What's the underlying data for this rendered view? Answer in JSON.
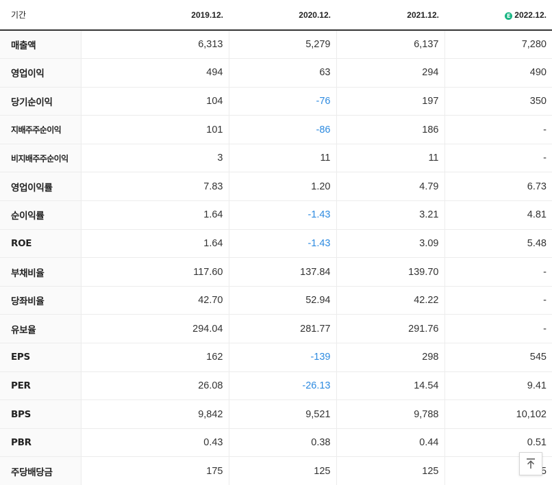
{
  "header": {
    "period_label": "기간",
    "columns": [
      "2019.12.",
      "2020.12.",
      "2021.12.",
      "2022.12."
    ],
    "estimate_badge": "E"
  },
  "rows": [
    {
      "label": "매출액",
      "values": [
        "6,313",
        "5,279",
        "6,137",
        "7,280"
      ]
    },
    {
      "label": "영업이익",
      "values": [
        "494",
        "63",
        "294",
        "490"
      ]
    },
    {
      "label": "당기순이익",
      "values": [
        "104",
        "-76",
        "197",
        "350"
      ]
    },
    {
      "label": "지배주주순이익",
      "values": [
        "101",
        "-86",
        "186",
        "-"
      ]
    },
    {
      "label": "비지배주주순이익",
      "values": [
        "3",
        "11",
        "11",
        "-"
      ]
    },
    {
      "label": "영업이익률",
      "values": [
        "7.83",
        "1.20",
        "4.79",
        "6.73"
      ]
    },
    {
      "label": "순이익률",
      "values": [
        "1.64",
        "-1.43",
        "3.21",
        "4.81"
      ]
    },
    {
      "label": "ROE",
      "values": [
        "1.64",
        "-1.43",
        "3.09",
        "5.48"
      ]
    },
    {
      "label": "부채비율",
      "values": [
        "117.60",
        "137.84",
        "139.70",
        "-"
      ]
    },
    {
      "label": "당좌비율",
      "values": [
        "42.70",
        "52.94",
        "42.22",
        "-"
      ]
    },
    {
      "label": "유보율",
      "values": [
        "294.04",
        "281.77",
        "291.76",
        "-"
      ]
    },
    {
      "label": "EPS",
      "values": [
        "162",
        "-139",
        "298",
        "545"
      ]
    },
    {
      "label": "PER",
      "values": [
        "26.08",
        "-26.13",
        "14.54",
        "9.41"
      ]
    },
    {
      "label": "BPS",
      "values": [
        "9,842",
        "9,521",
        "9,788",
        "10,102"
      ]
    },
    {
      "label": "PBR",
      "values": [
        "0.43",
        "0.38",
        "0.44",
        "0.51"
      ]
    },
    {
      "label": "주당배당금",
      "values": [
        "175",
        "125",
        "125",
        "5"
      ]
    }
  ],
  "colors": {
    "negative": "#2c8ae0",
    "estimate_badge": "#19b583"
  },
  "scroll_top_button": {
    "icon": "arrow-up-to-top-icon"
  }
}
